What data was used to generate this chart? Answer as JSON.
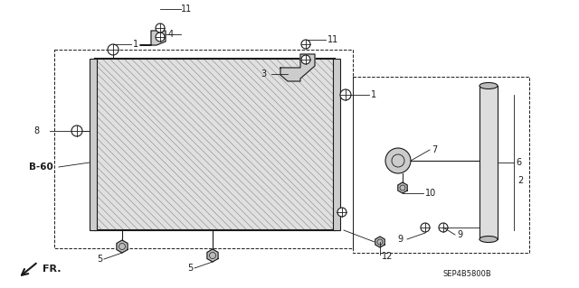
{
  "bg_color": "#ffffff",
  "lc": "#1a1a1a",
  "fig_w": 6.4,
  "fig_h": 3.19,
  "dpi": 100,
  "diagram_code": "SEP4B5800B"
}
